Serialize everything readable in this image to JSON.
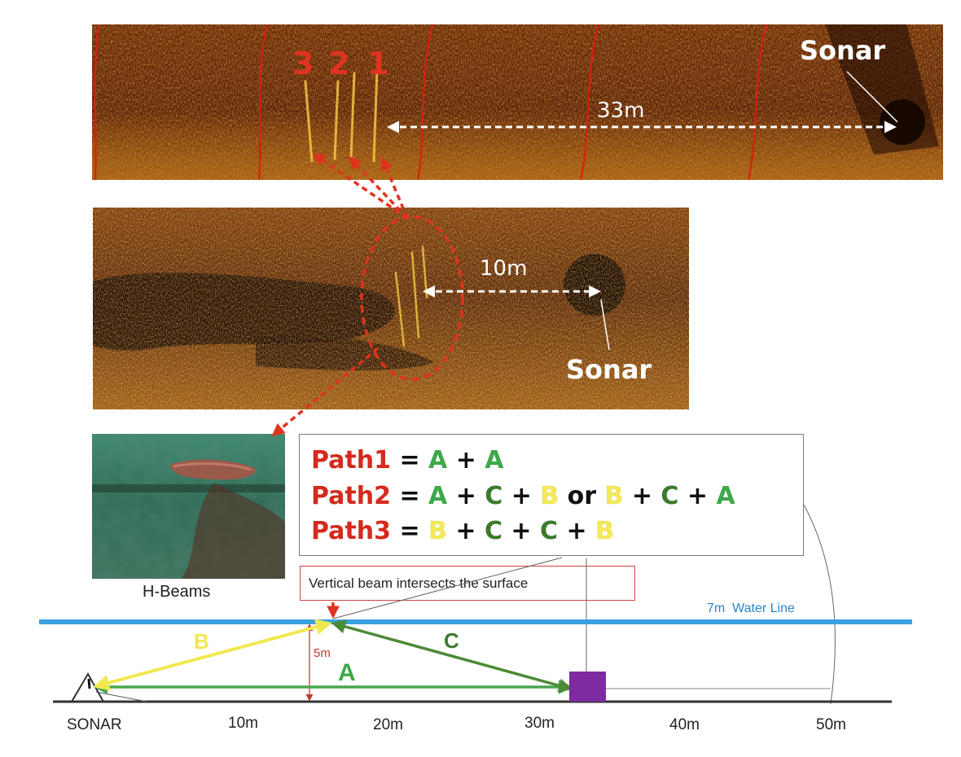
{
  "top_image": {
    "numbers": [
      "3",
      "2",
      "1"
    ],
    "distance_label": "33m",
    "sonar_label": "Sonar"
  },
  "middle_image": {
    "distance_label": "10m",
    "sonar_label": "Sonar"
  },
  "photo": {
    "caption": "H-Beams"
  },
  "equations": {
    "line1": [
      {
        "t": "Path1",
        "c": "red"
      },
      {
        "t": " = ",
        "c": "black"
      },
      {
        "t": "A",
        "c": "green"
      },
      {
        "t": " + ",
        "c": "black"
      },
      {
        "t": "A",
        "c": "green"
      }
    ],
    "line2": [
      {
        "t": "Path2",
        "c": "red"
      },
      {
        "t": " = ",
        "c": "black"
      },
      {
        "t": "A",
        "c": "green"
      },
      {
        "t": " + ",
        "c": "black"
      },
      {
        "t": "C",
        "c": "dgreen"
      },
      {
        "t": " + ",
        "c": "black"
      },
      {
        "t": "B",
        "c": "yellow"
      },
      {
        "t": " or ",
        "c": "black"
      },
      {
        "t": "B",
        "c": "yellow"
      },
      {
        "t": " + ",
        "c": "black"
      },
      {
        "t": "C",
        "c": "dgreen"
      },
      {
        "t": " + ",
        "c": "black"
      },
      {
        "t": "A",
        "c": "green"
      }
    ],
    "line3": [
      {
        "t": "Path3",
        "c": "red"
      },
      {
        "t": " = ",
        "c": "black"
      },
      {
        "t": "B",
        "c": "yellow"
      },
      {
        "t": " + ",
        "c": "black"
      },
      {
        "t": "C",
        "c": "dgreen"
      },
      {
        "t": " + ",
        "c": "black"
      },
      {
        "t": "C",
        "c": "dgreen"
      },
      {
        "t": " + ",
        "c": "black"
      },
      {
        "t": "B",
        "c": "yellow"
      }
    ]
  },
  "callout": {
    "text": "Vertical beam intersects the surface"
  },
  "diagram": {
    "water_line_label": "7m  Water Line",
    "height_label": "5m",
    "path_labels": {
      "A": "A",
      "B": "B",
      "C": "C"
    },
    "axis_labels": [
      "SONAR",
      "10m",
      "20m",
      "30m",
      "40m",
      "50m"
    ]
  },
  "colors": {
    "red": "#d42a1e",
    "green": "#3ea84a",
    "dark_green": "#3d7a2c",
    "yellow": "#f3ea5a",
    "water_line": "#3aa0e0",
    "target": "#7e2aa0"
  }
}
